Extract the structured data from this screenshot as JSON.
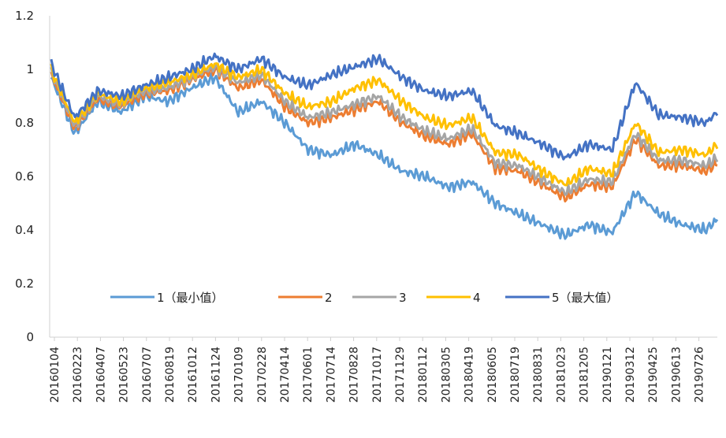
{
  "chart_data": {
    "type": "line",
    "title": "",
    "xlabel": "",
    "ylabel": "",
    "ylim": [
      0,
      1.2
    ],
    "y_ticks": [
      "0",
      "0.2",
      "0.4",
      "0.6",
      "0.8",
      "1",
      "1.2"
    ],
    "y_tick_values": [
      0,
      0.2,
      0.4,
      0.6,
      0.8,
      1.0,
      1.2
    ],
    "x_tick_labels": [
      "20160104",
      "20160223",
      "20160407",
      "20160523",
      "20160707",
      "20160819",
      "20161012",
      "20161124",
      "20170109",
      "20170228",
      "20170414",
      "20170601",
      "20170714",
      "20170828",
      "20171017",
      "20171129",
      "20180112",
      "20180305",
      "20180419",
      "20180605",
      "20180719",
      "20180831",
      "20181023",
      "20181205",
      "20190121",
      "20190312",
      "20190425",
      "20190613",
      "20190726"
    ],
    "legend_position": "bottom-center",
    "grid": false,
    "x": [
      0,
      1,
      2,
      3,
      4,
      5,
      6,
      7,
      8,
      9,
      10,
      11,
      12,
      13,
      14,
      15,
      16,
      17,
      18,
      19,
      20,
      21,
      22,
      23,
      24,
      25,
      26,
      27,
      28,
      28.5
    ],
    "series": [
      {
        "name": "1（最小值）",
        "color": "#5B9BD5",
        "values": [
          0.97,
          0.76,
          0.88,
          0.84,
          0.9,
          0.88,
          0.93,
          0.97,
          0.84,
          0.88,
          0.8,
          0.7,
          0.68,
          0.72,
          0.68,
          0.62,
          0.6,
          0.56,
          0.58,
          0.5,
          0.46,
          0.42,
          0.38,
          0.42,
          0.39,
          0.54,
          0.46,
          0.42,
          0.4,
          0.44
        ]
      },
      {
        "name": "2",
        "color": "#ED7D31",
        "values": [
          0.98,
          0.78,
          0.89,
          0.86,
          0.91,
          0.92,
          0.96,
          1.0,
          0.93,
          0.96,
          0.86,
          0.8,
          0.82,
          0.85,
          0.88,
          0.8,
          0.75,
          0.72,
          0.76,
          0.63,
          0.62,
          0.57,
          0.52,
          0.57,
          0.56,
          0.74,
          0.64,
          0.64,
          0.62,
          0.65
        ]
      },
      {
        "name": "3",
        "color": "#A5A5A5",
        "values": [
          0.99,
          0.79,
          0.9,
          0.87,
          0.92,
          0.93,
          0.97,
          1.01,
          0.95,
          0.98,
          0.88,
          0.82,
          0.84,
          0.87,
          0.9,
          0.82,
          0.77,
          0.74,
          0.78,
          0.65,
          0.64,
          0.59,
          0.54,
          0.59,
          0.58,
          0.76,
          0.66,
          0.66,
          0.64,
          0.67
        ]
      },
      {
        "name": "4",
        "color": "#FFC000",
        "values": [
          1.0,
          0.8,
          0.91,
          0.88,
          0.93,
          0.95,
          0.98,
          1.02,
          0.97,
          1.0,
          0.91,
          0.86,
          0.88,
          0.93,
          0.96,
          0.88,
          0.82,
          0.79,
          0.82,
          0.69,
          0.68,
          0.62,
          0.57,
          0.63,
          0.61,
          0.8,
          0.69,
          0.7,
          0.68,
          0.72
        ]
      },
      {
        "name": "5（最大值）",
        "color": "#4472C4",
        "values": [
          1.02,
          0.82,
          0.92,
          0.9,
          0.94,
          0.97,
          1.0,
          1.05,
          1.0,
          1.04,
          0.97,
          0.94,
          0.98,
          1.01,
          1.04,
          0.97,
          0.92,
          0.9,
          0.92,
          0.79,
          0.76,
          0.72,
          0.67,
          0.72,
          0.7,
          0.95,
          0.83,
          0.82,
          0.8,
          0.84
        ]
      }
    ]
  }
}
